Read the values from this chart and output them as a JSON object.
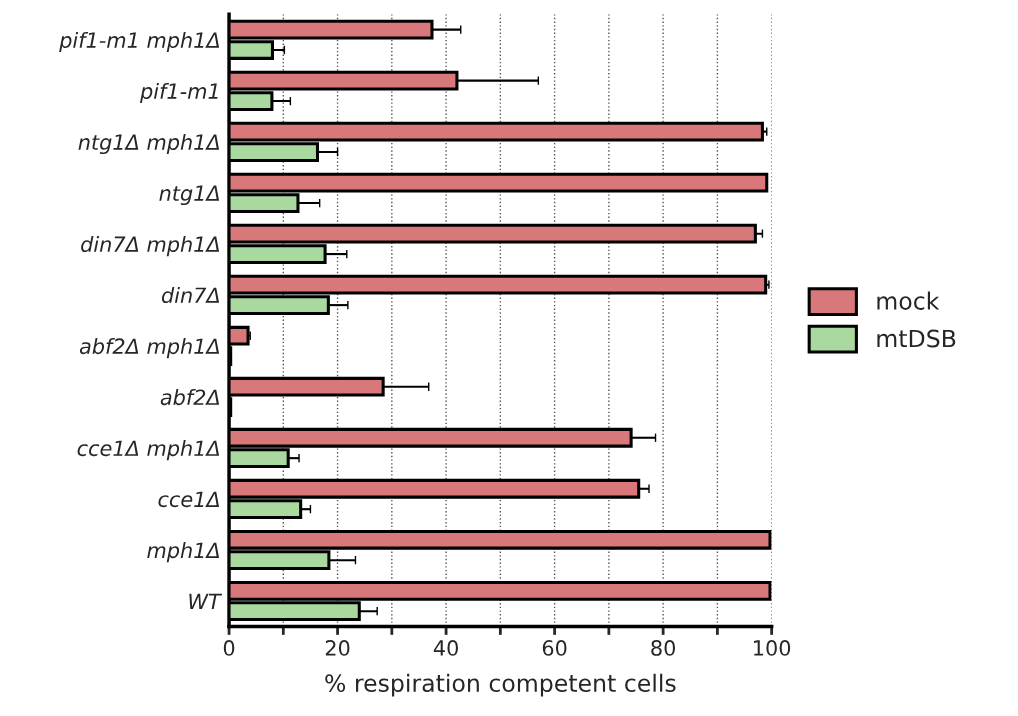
{
  "chart_data": {
    "type": "bar",
    "orientation": "horizontal",
    "xlabel": "% respiration competent cells",
    "categories": [
      "pif1-m1 mph1Δ",
      "pif1-m1",
      "ntg1Δ mph1Δ",
      "ntg1Δ",
      "din7Δ mph1Δ",
      "din7Δ",
      "abf2Δ mph1Δ",
      "abf2Δ",
      "cce1Δ mph1Δ",
      "cce1Δ",
      "mph1Δ",
      "WT"
    ],
    "series": [
      {
        "name": "mock",
        "color": "#d9787b",
        "values": [
          37.4,
          42.0,
          98.3,
          99.1,
          97.0,
          98.9,
          3.5,
          28.4,
          74.1,
          75.5,
          99.7,
          99.7
        ],
        "errors": [
          5.3,
          15.0,
          0.8,
          null,
          1.3,
          0.6,
          0.4,
          8.4,
          4.5,
          1.9,
          null,
          null
        ]
      },
      {
        "name": "mtDSB",
        "color": "#a9d99f",
        "values": [
          8.0,
          7.9,
          16.3,
          12.7,
          17.7,
          18.3,
          0.3,
          0.3,
          10.9,
          13.2,
          18.4,
          24.0
        ],
        "errors": [
          2.2,
          3.4,
          3.7,
          4.0,
          4.0,
          3.6,
          null,
          null,
          2.0,
          1.8,
          4.9,
          3.3
        ]
      }
    ],
    "xlim": [
      0,
      100
    ],
    "xticks": [
      0,
      {
        "value": 10,
        "label": null
      },
      20,
      {
        "value": 30,
        "label": null
      },
      40,
      {
        "value": 50,
        "label": null
      },
      60,
      {
        "value": 70,
        "label": null
      },
      80,
      {
        "value": 90,
        "label": null
      },
      100
    ],
    "grid": "x",
    "legend": "right"
  }
}
